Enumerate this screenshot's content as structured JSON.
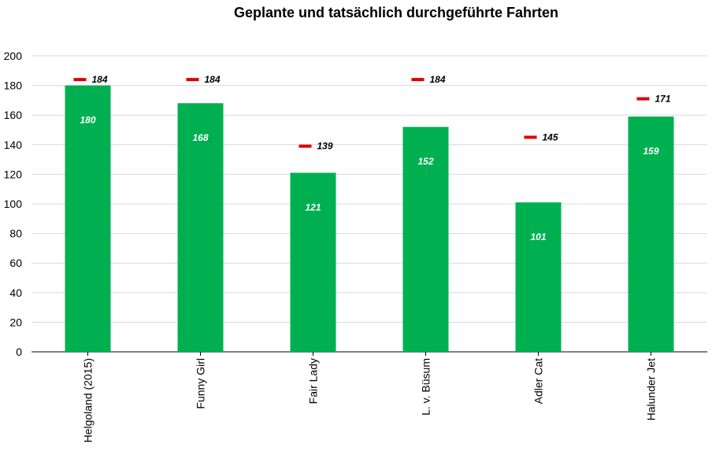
{
  "chart_data": {
    "type": "bar",
    "title": "Geplante und tatsächlich durchgeführte Fahrten",
    "xlabel": "",
    "ylabel": "",
    "ylim": [
      0,
      200
    ],
    "yticks": [
      0,
      20,
      40,
      60,
      80,
      100,
      120,
      140,
      160,
      180,
      200
    ],
    "grid": true,
    "categories": [
      "Helgoland (2015)",
      "Funny Girl",
      "Fair Lady",
      "L. v. Büsum",
      "Adler Cat",
      "Halunder Jet"
    ],
    "series": [
      {
        "type": "bar",
        "values": [
          180,
          168,
          121,
          152,
          101,
          159
        ],
        "color": "#00b050"
      },
      {
        "type": "marker",
        "values": [
          184,
          184,
          139,
          184,
          145,
          171
        ],
        "color": "#e00000"
      }
    ]
  }
}
